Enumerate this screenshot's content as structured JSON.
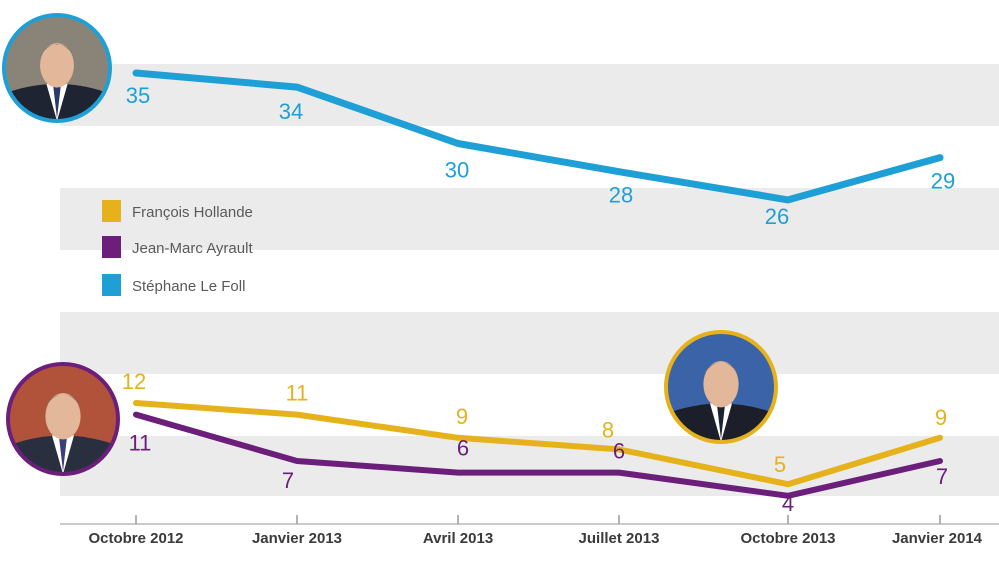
{
  "chart_data": {
    "type": "line",
    "title": "",
    "xlabel": "",
    "ylabel": "",
    "categories": [
      "Octobre 2012",
      "Janvier 2013",
      "Avril 2013",
      "Juillet 2013",
      "Octobre 2013",
      "Janvier 2014"
    ],
    "series": [
      {
        "name": "François Hollande",
        "color": "#e6b21c",
        "values": [
          12,
          11,
          9,
          8,
          5,
          9
        ]
      },
      {
        "name": "Jean-Marc Ayrault",
        "color": "#6b1f7a",
        "values": [
          11,
          7,
          6,
          6,
          4,
          7
        ]
      },
      {
        "name": "Stéphane Le Foll",
        "color": "#1ea0d6",
        "values": [
          35,
          34,
          30,
          28,
          26,
          29
        ]
      }
    ],
    "legend": "left-middle",
    "grid": "horizontal bands",
    "portraits": [
      {
        "name": "portrait-le-foll",
        "ring": "#1ea0d6"
      },
      {
        "name": "portrait-ayrault",
        "ring": "#6b1f7a"
      },
      {
        "name": "portrait-hollande",
        "ring": "#e6b21c"
      }
    ]
  }
}
